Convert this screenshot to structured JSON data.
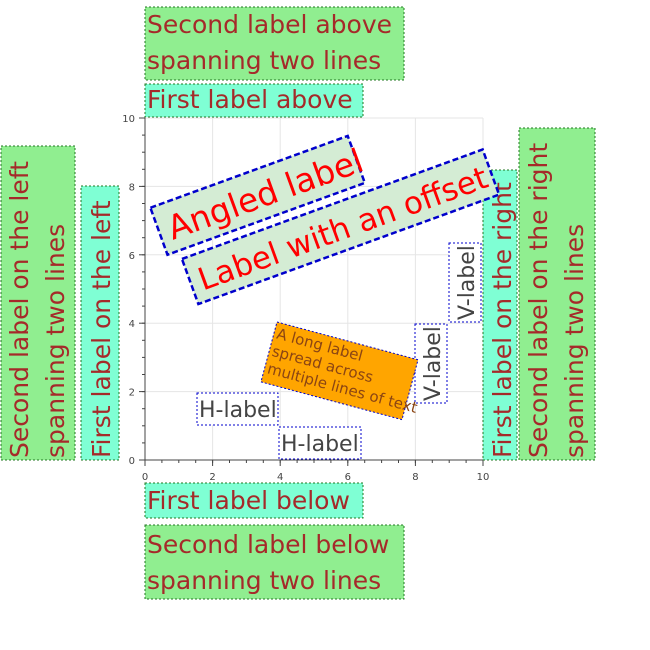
{
  "colors": {
    "panel_green": "#90ee90",
    "panel_aqua": "#7fffd4",
    "panel_text": "#a52a2a",
    "angled_fill": "#d4ecd4",
    "angled_text": "#ff0000",
    "box_border": "#0000cc",
    "orange_fill": "#ffa500",
    "orange_text": "#8b4513",
    "grid": "#e5e5e5",
    "axis": "#444444",
    "label_text": "#444444"
  },
  "chart_data": {
    "type": "scatter",
    "title": "",
    "xlabel": "",
    "ylabel": "",
    "xlim": [
      0,
      10
    ],
    "ylim": [
      0,
      10
    ],
    "grid": true,
    "x_ticks": [
      "0",
      "2",
      "4",
      "6",
      "8",
      "10"
    ],
    "y_ticks": [
      "0",
      "2",
      "4",
      "6",
      "8",
      "10"
    ],
    "panels": {
      "above": [
        "First label above",
        "Second label above spanning two lines"
      ],
      "below": [
        "First label below",
        "Second label below spanning two lines"
      ],
      "left": [
        "First label on the left",
        "Second label on the left spanning two lines"
      ],
      "right": [
        "First label on the right",
        "Second label on the right spanning two lines"
      ]
    },
    "labels": [
      {
        "text": "Angled label",
        "x": 1,
        "y": 6,
        "angle_deg": 20
      },
      {
        "text": "Label with an offset",
        "x": 1.5,
        "y": 4.5,
        "angle_deg": 20
      },
      {
        "text": "H-label",
        "x": 1.5,
        "y": 1.2,
        "angle_deg": 0
      },
      {
        "text": "H-label",
        "x": 4,
        "y": 0.2,
        "angle_deg": 0
      },
      {
        "text": "V-label",
        "x": 8.5,
        "y": 1.7,
        "angle_deg": 90
      },
      {
        "text": "V-label",
        "x": 9.5,
        "y": 4,
        "angle_deg": 90
      },
      {
        "text": "A long label spread across multiple lines of text",
        "x": 3.5,
        "y": 2,
        "angle_deg": -15
      }
    ]
  }
}
